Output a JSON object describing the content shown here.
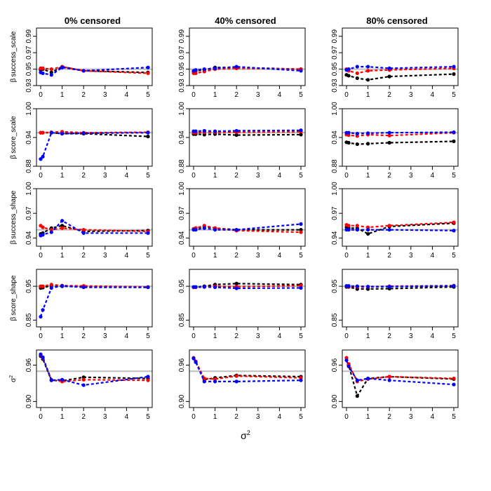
{
  "chart_data": {
    "type": "line",
    "layout": "grid 5 rows x 3 columns",
    "column_titles": [
      "0% censored",
      "40% censored",
      "80% censored"
    ],
    "xlabel": "σ",
    "xlabel_sup": "2",
    "x": [
      0,
      0.1,
      0.5,
      1,
      2,
      5
    ],
    "x_ticks": [
      0,
      1,
      2,
      3,
      4,
      5
    ],
    "xlim": [
      0,
      5
    ],
    "reference_line": 0.95,
    "series_names": [
      "black",
      "red",
      "blue"
    ],
    "colors": {
      "black": "#000000",
      "red": "#ff0000",
      "blue": "#0000ff",
      "reference": "#bebebe"
    },
    "rows": [
      {
        "ylabel_pre": "β",
        "ylabel": "success_scale",
        "ylim": [
          0.93,
          1.0
        ],
        "y_ticks": [
          0.93,
          0.95,
          0.97,
          0.99
        ],
        "y_tick_labels": [
          "0.93",
          "0.95",
          "0.97",
          "0.99"
        ],
        "panels": [
          {
            "black": [
              0.949,
              0.95,
              0.946,
              0.953,
              0.948,
              0.946
            ],
            "red": [
              0.951,
              0.951,
              0.95,
              0.953,
              0.948,
              0.945
            ],
            "blue": [
              0.946,
              0.945,
              0.943,
              0.952,
              0.948,
              0.952
            ]
          },
          {
            "black": [
              0.947,
              0.948,
              0.949,
              0.952,
              0.952,
              0.95
            ],
            "red": [
              0.945,
              0.945,
              0.947,
              0.95,
              0.951,
              0.95
            ],
            "blue": [
              0.948,
              0.949,
              0.95,
              0.951,
              0.953,
              0.948
            ]
          },
          {
            "black": [
              0.943,
              0.942,
              0.939,
              0.937,
              0.941,
              0.944
            ],
            "red": [
              0.95,
              0.948,
              0.945,
              0.948,
              0.949,
              0.951
            ],
            "blue": [
              0.949,
              0.95,
              0.953,
              0.953,
              0.951,
              0.953
            ]
          }
        ]
      },
      {
        "ylabel_pre": "β",
        "ylabel": "score_scale",
        "ylim": [
          0.88,
          1.0
        ],
        "y_ticks": [
          0.88,
          0.94,
          1.0
        ],
        "y_tick_labels": [
          "0.88",
          "0.94",
          "1.00"
        ],
        "panels": [
          {
            "black": [
              0.95,
              0.95,
              0.95,
              0.948,
              0.948,
              0.942
            ],
            "red": [
              0.95,
              0.95,
              0.951,
              0.952,
              0.95,
              0.951
            ],
            "blue": [
              0.895,
              0.9,
              0.95,
              0.948,
              0.949,
              0.95
            ]
          },
          {
            "black": [
              0.947,
              0.947,
              0.946,
              0.947,
              0.945,
              0.946
            ],
            "red": [
              0.95,
              0.95,
              0.951,
              0.951,
              0.951,
              0.952
            ],
            "blue": [
              0.953,
              0.953,
              0.954,
              0.953,
              0.954,
              0.955
            ]
          },
          {
            "black": [
              0.93,
              0.929,
              0.926,
              0.927,
              0.929,
              0.932
            ],
            "red": [
              0.946,
              0.945,
              0.943,
              0.946,
              0.944,
              0.95
            ],
            "blue": [
              0.95,
              0.95,
              0.948,
              0.949,
              0.95,
              0.951
            ]
          }
        ]
      },
      {
        "ylabel_pre": "β",
        "ylabel": "success_shape",
        "ylim": [
          0.93,
          1.0
        ],
        "y_ticks": [
          0.94,
          0.97,
          1.0
        ],
        "y_tick_labels": [
          "0.94",
          "0.97",
          "1.00"
        ],
        "panels": [
          {
            "black": [
              0.945,
              0.946,
              0.952,
              0.955,
              0.948,
              0.949
            ],
            "red": [
              0.955,
              0.953,
              0.95,
              0.952,
              0.95,
              0.948
            ],
            "blue": [
              0.943,
              0.944,
              0.947,
              0.961,
              0.946,
              0.946
            ]
          },
          {
            "black": [
              0.951,
              0.952,
              0.954,
              0.952,
              0.95,
              0.95
            ],
            "red": [
              0.951,
              0.952,
              0.955,
              0.952,
              0.949,
              0.947
            ],
            "blue": [
              0.95,
              0.95,
              0.952,
              0.95,
              0.95,
              0.957
            ]
          },
          {
            "black": [
              0.953,
              0.952,
              0.952,
              0.945,
              0.954,
              0.958
            ],
            "red": [
              0.956,
              0.955,
              0.955,
              0.953,
              0.955,
              0.959
            ],
            "blue": [
              0.95,
              0.95,
              0.95,
              0.95,
              0.95,
              0.949
            ]
          }
        ]
      },
      {
        "ylabel_pre": "β",
        "ylabel": "score_shape",
        "ylim": [
          0.83,
          1.0
        ],
        "y_ticks": [
          0.85,
          0.95
        ],
        "y_tick_labels": [
          "0.85",
          "0.95"
        ],
        "panels": [
          {
            "black": [
              0.945,
              0.946,
              0.952,
              0.95,
              0.948,
              0.947
            ],
            "red": [
              0.95,
              0.95,
              0.955,
              0.952,
              0.951,
              0.948
            ],
            "blue": [
              0.86,
              0.88,
              0.945,
              0.951,
              0.947,
              0.947
            ]
          },
          {
            "black": [
              0.947,
              0.947,
              0.95,
              0.955,
              0.958,
              0.955
            ],
            "red": [
              0.947,
              0.947,
              0.948,
              0.95,
              0.949,
              0.952
            ],
            "blue": [
              0.948,
              0.948,
              0.948,
              0.947,
              0.944,
              0.945
            ]
          },
          {
            "black": [
              0.948,
              0.948,
              0.942,
              0.942,
              0.943,
              0.948
            ],
            "red": [
              0.95,
              0.95,
              0.948,
              0.948,
              0.95,
              0.952
            ],
            "blue": [
              0.951,
              0.951,
              0.95,
              0.949,
              0.949,
              0.951
            ]
          }
        ]
      },
      {
        "ylabel_pre": "σ",
        "ylabel_sup": "2",
        "ylabel": "",
        "ylim": [
          0.89,
          0.985
        ],
        "y_ticks": [
          0.9,
          0.96
        ],
        "y_tick_labels": [
          "0.90",
          "0.96"
        ],
        "panels": [
          {
            "black": [
              0.975,
              0.97,
              0.935,
              0.934,
              0.94,
              0.938
            ],
            "red": [
              0.977,
              0.972,
              0.936,
              0.933,
              0.936,
              0.935
            ],
            "blue": [
              0.978,
              0.973,
              0.935,
              0.936,
              0.927,
              0.941
            ]
          },
          {
            "black": [
              0.972,
              0.966,
              0.936,
              0.939,
              0.943,
              0.941
            ],
            "red": [
              0.972,
              0.966,
              0.938,
              0.937,
              0.942,
              0.939
            ],
            "blue": [
              0.971,
              0.965,
              0.933,
              0.933,
              0.933,
              0.935
            ]
          },
          {
            "black": [
              0.972,
              0.96,
              0.909,
              0.938,
              0.941,
              0.937
            ],
            "red": [
              0.972,
              0.962,
              0.933,
              0.937,
              0.941,
              0.938
            ],
            "blue": [
              0.968,
              0.958,
              0.935,
              0.938,
              0.935,
              0.928
            ]
          }
        ]
      }
    ]
  }
}
